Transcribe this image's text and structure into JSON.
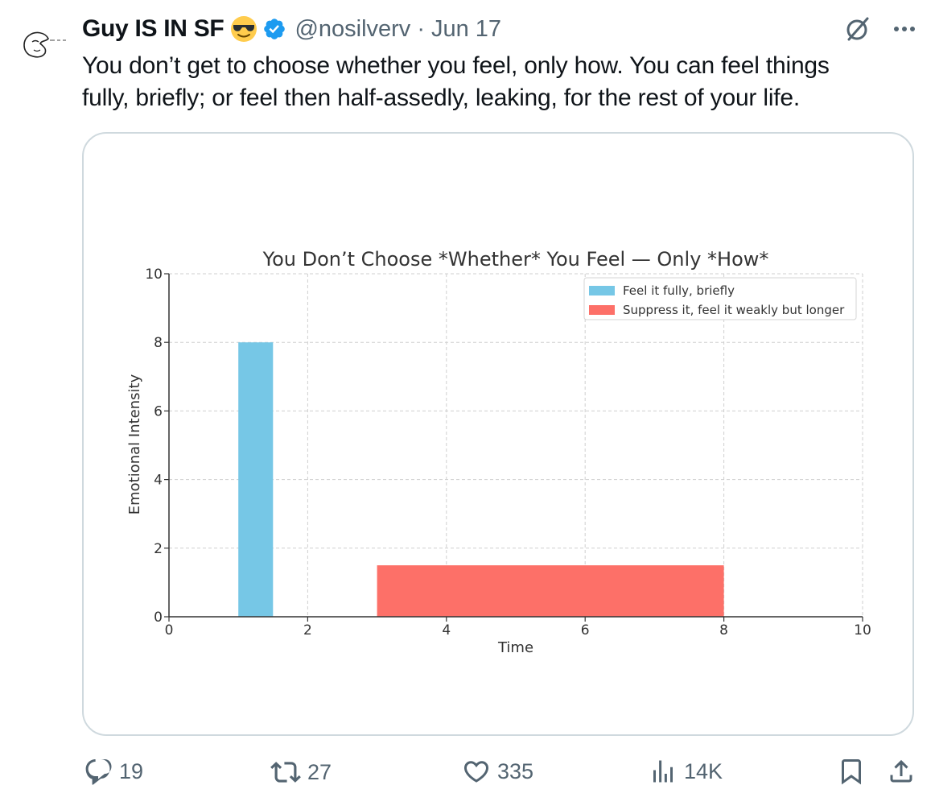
{
  "tweet": {
    "author_name": "Guy IS IN SF",
    "handle": "@nosilverv",
    "separator": "·",
    "date": "Jun 17",
    "text_line1": "You don’t get to choose whether you feel, only how. You can feel things",
    "text_line2": "fully, briefly; or feel then half-assedly, leaking, for the rest of your life."
  },
  "actions": {
    "replies": "19",
    "reposts": "27",
    "likes": "335",
    "views": "14K"
  },
  "icons": {
    "avatar": "avatar-sketch",
    "emoji": "sunglasses-emoji",
    "verified": "verified-badge-icon",
    "grok": "grok-icon",
    "more": "more-icon",
    "reply": "reply-icon",
    "repost": "repost-icon",
    "like": "heart-icon",
    "views": "views-icon",
    "bookmark": "bookmark-icon",
    "share": "share-icon"
  },
  "colors": {
    "verified": "#1d9bf0",
    "text_secondary": "#536471",
    "bar_blue": "#76c7e6",
    "bar_red": "#fd7068"
  },
  "chart_data": {
    "type": "bar",
    "title": "You Don’t Choose *Whether* You Feel — Only *How*",
    "xlabel": "Time",
    "ylabel": "Emotional Intensity",
    "xlim": [
      0,
      10
    ],
    "ylim": [
      0,
      10
    ],
    "xticks": [
      0,
      2,
      4,
      6,
      8,
      10
    ],
    "yticks": [
      0,
      2,
      4,
      6,
      8,
      10
    ],
    "grid": true,
    "legend_position": "top-right",
    "series": [
      {
        "name": "Feel it fully, briefly",
        "color": "#76c7e6",
        "x_start": 1,
        "x_end": 1.5,
        "value": 8
      },
      {
        "name": "Suppress it, feel it weakly but longer",
        "color": "#fd7068",
        "x_start": 3,
        "x_end": 8,
        "value": 1.5
      }
    ]
  }
}
